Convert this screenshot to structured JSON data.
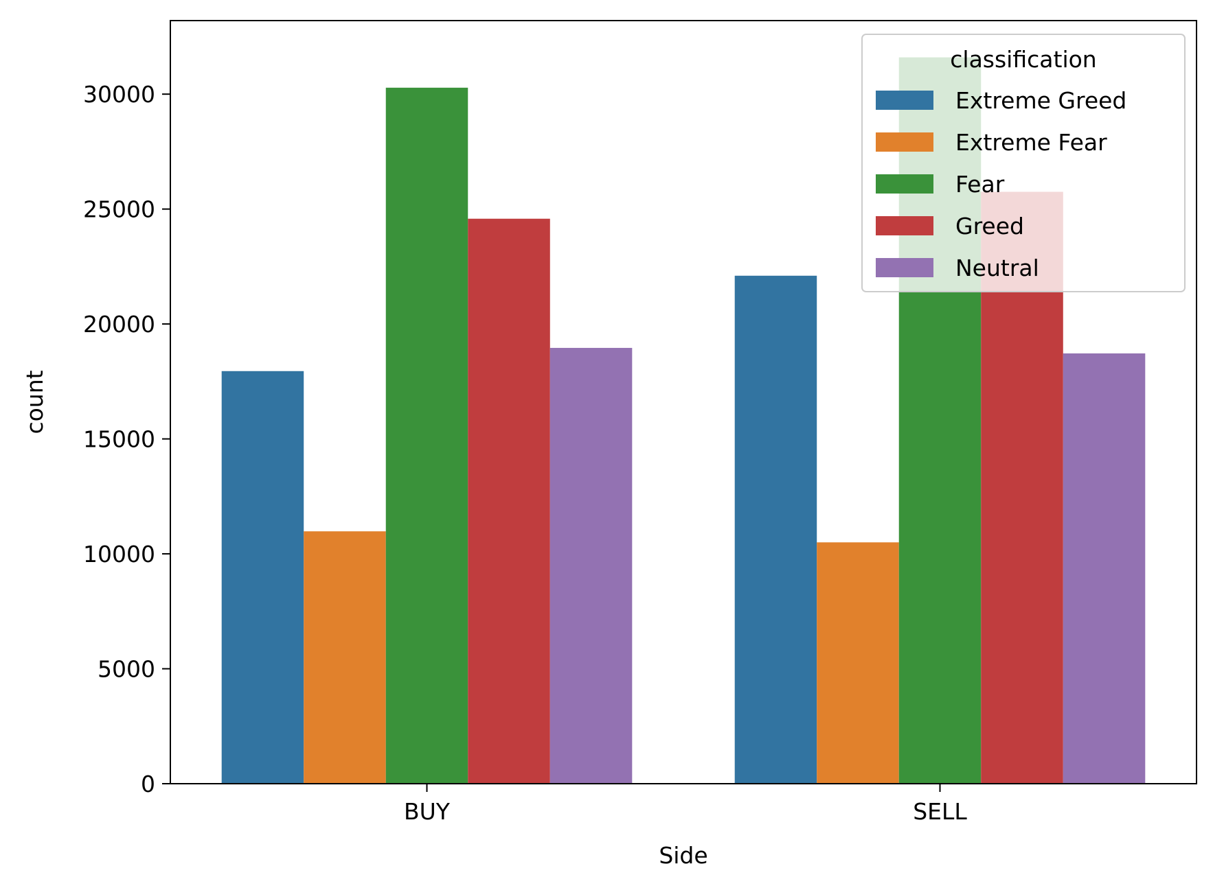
{
  "chart_data": {
    "type": "bar",
    "title": "",
    "xlabel": "Side",
    "ylabel": "count",
    "categories": [
      "BUY",
      "SELL"
    ],
    "ylim": [
      0,
      33200
    ],
    "yticks": [
      0,
      5000,
      10000,
      15000,
      20000,
      25000,
      30000
    ],
    "grid": false,
    "legend": {
      "title": "classification",
      "placement": "top-right"
    },
    "series": [
      {
        "name": "Extreme Greed",
        "color": "#3274a1",
        "values": [
          17950,
          22100
        ]
      },
      {
        "name": "Extreme Fear",
        "color": "#e1812c",
        "values": [
          10980,
          10500
        ]
      },
      {
        "name": "Fear",
        "color": "#3a923a",
        "values": [
          30280,
          31600
        ]
      },
      {
        "name": "Greed",
        "color": "#c03d3e",
        "values": [
          24580,
          25750
        ]
      },
      {
        "name": "Neutral",
        "color": "#9372b2",
        "values": [
          18960,
          18720
        ]
      }
    ]
  }
}
